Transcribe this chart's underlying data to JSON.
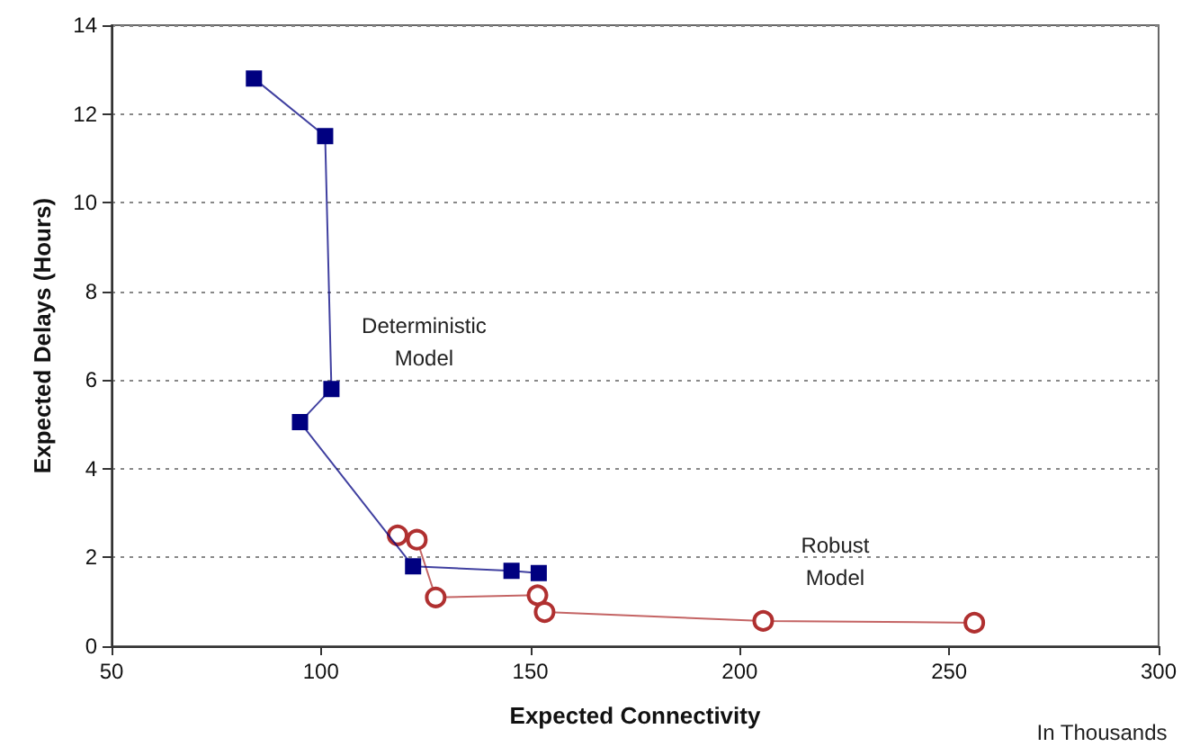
{
  "chart_data": {
    "type": "line",
    "xlabel": "Expected Connectivity",
    "ylabel": "Expected Delays (Hours)",
    "annotations": [
      "In Thousands"
    ],
    "xlim": [
      50,
      300
    ],
    "xticks": [
      50,
      100,
      150,
      200,
      250,
      300
    ],
    "ylim": [
      0,
      14
    ],
    "yticks": [
      0,
      2,
      4,
      6,
      8,
      10,
      12,
      14
    ],
    "grid": "y",
    "legend": false,
    "line_style": "solid",
    "series": [
      {
        "name": "Deterministic Model",
        "color": "#000080",
        "marker": "square",
        "x": [
          84,
          101,
          102.5,
          95,
          122,
          145.5,
          152
        ],
        "values": [
          12.8,
          11.5,
          5.8,
          5.05,
          1.8,
          1.7,
          1.65
        ]
      },
      {
        "name": "Robust Model",
        "color": "#b03030",
        "marker": "circle",
        "x": [
          118.3,
          122.9,
          127.4,
          151.7,
          153.4,
          205.6,
          256
        ],
        "values": [
          2.5,
          2.4,
          1.1,
          1.15,
          0.77,
          0.57,
          0.53
        ]
      }
    ]
  }
}
